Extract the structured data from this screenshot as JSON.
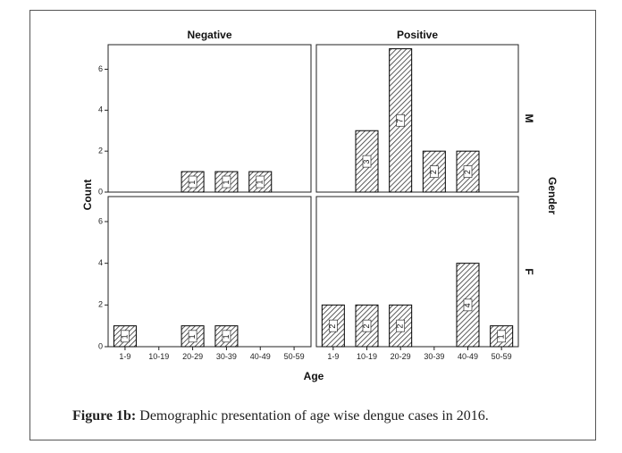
{
  "chart_data": {
    "type": "bar",
    "y_axis_label": "Count",
    "x_axis_label": "Age",
    "row_group_label": "Gender",
    "categories": [
      "1-9",
      "10-19",
      "20-29",
      "30-39",
      "40-49",
      "50-59"
    ],
    "ylim": [
      0,
      7.2
    ],
    "y_ticks": [
      0,
      2,
      4,
      6
    ],
    "columns": [
      "Negative",
      "Positive"
    ],
    "rows": [
      "M",
      "F"
    ],
    "panels": [
      {
        "column": "Negative",
        "row": "M",
        "values": [
          0,
          0,
          1,
          1,
          1,
          0
        ]
      },
      {
        "column": "Positive",
        "row": "M",
        "values": [
          0,
          3,
          7,
          2,
          2,
          0
        ]
      },
      {
        "column": "Negative",
        "row": "F",
        "values": [
          1,
          0,
          1,
          1,
          0,
          0
        ]
      },
      {
        "column": "Positive",
        "row": "F",
        "values": [
          2,
          2,
          2,
          0,
          4,
          1
        ]
      }
    ]
  },
  "caption": {
    "label": "Figure 1b:",
    "text": "Demographic presentation of age wise dengue cases in 2016."
  }
}
